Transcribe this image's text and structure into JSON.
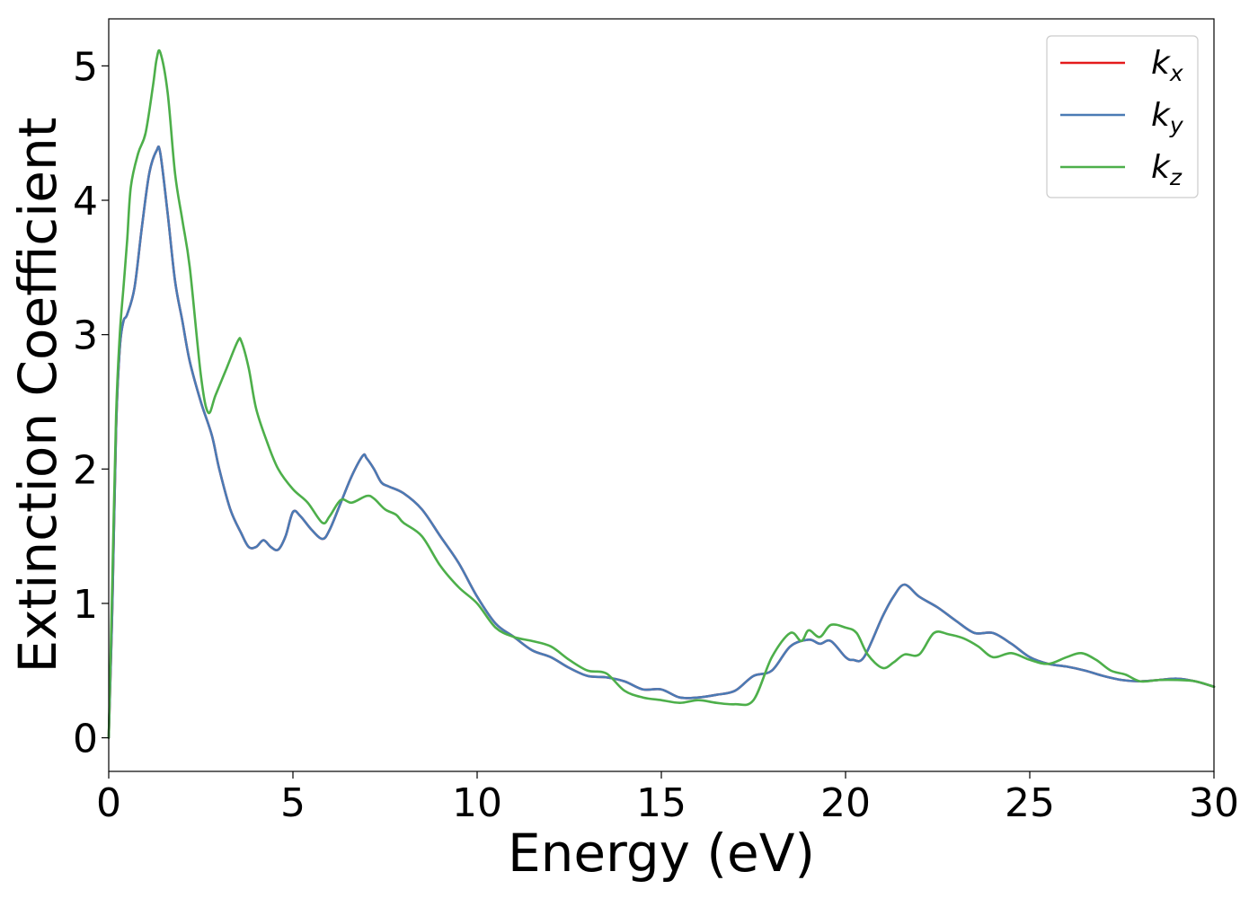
{
  "chart_data": {
    "type": "line",
    "xlabel": "Energy (eV)",
    "ylabel": "Extinction Coefficient",
    "xlim": [
      0,
      30
    ],
    "ylim": [
      -0.25,
      5.35
    ],
    "xticks": [
      0,
      5,
      10,
      15,
      20,
      25,
      30
    ],
    "yticks": [
      0,
      1,
      2,
      3,
      4,
      5
    ],
    "grid": false,
    "legend_position": "top-right",
    "series": [
      {
        "name": "k_x",
        "legend_base": "k",
        "legend_sub": "x",
        "color": "#e41a1c",
        "x": [
          0,
          0.1,
          0.2,
          0.3,
          0.4,
          0.5,
          0.7,
          0.9,
          1.1,
          1.3,
          1.4,
          1.6,
          1.8,
          2.0,
          2.2,
          2.5,
          2.8,
          3.0,
          3.3,
          3.6,
          3.8,
          4.0,
          4.2,
          4.4,
          4.6,
          4.8,
          5.0,
          5.2,
          5.5,
          5.8,
          6.0,
          6.3,
          6.6,
          6.9,
          7.0,
          7.2,
          7.4,
          7.6,
          8.0,
          8.5,
          9.0,
          9.5,
          10.0,
          10.5,
          11.0,
          11.5,
          12.0,
          12.5,
          13.0,
          13.5,
          14.0,
          14.5,
          15.0,
          15.5,
          16.0,
          16.5,
          17.0,
          17.5,
          18.0,
          18.5,
          19.0,
          19.3,
          19.6,
          20.0,
          20.2,
          20.5,
          21.0,
          21.3,
          21.6,
          22.0,
          22.5,
          23.0,
          23.5,
          24.0,
          24.5,
          25.0,
          25.5,
          26.0,
          26.5,
          27.0,
          27.5,
          28.0,
          28.5,
          29.0,
          29.5,
          30.0
        ],
        "values": [
          0,
          1.0,
          2.3,
          2.9,
          3.1,
          3.15,
          3.35,
          3.8,
          4.2,
          4.37,
          4.35,
          3.9,
          3.4,
          3.1,
          2.8,
          2.5,
          2.25,
          2.0,
          1.7,
          1.52,
          1.42,
          1.42,
          1.47,
          1.42,
          1.4,
          1.5,
          1.68,
          1.65,
          1.55,
          1.48,
          1.55,
          1.75,
          1.95,
          2.1,
          2.08,
          2.0,
          1.9,
          1.87,
          1.82,
          1.7,
          1.5,
          1.3,
          1.05,
          0.85,
          0.75,
          0.65,
          0.6,
          0.52,
          0.46,
          0.45,
          0.42,
          0.36,
          0.36,
          0.3,
          0.3,
          0.32,
          0.35,
          0.46,
          0.5,
          0.68,
          0.73,
          0.7,
          0.72,
          0.6,
          0.58,
          0.6,
          0.9,
          1.05,
          1.14,
          1.05,
          0.97,
          0.87,
          0.78,
          0.78,
          0.7,
          0.6,
          0.55,
          0.53,
          0.5,
          0.46,
          0.43,
          0.42,
          0.43,
          0.44,
          0.42,
          0.38
        ]
      },
      {
        "name": "k_y",
        "legend_base": "k",
        "legend_sub": "y",
        "color": "#4a7bb5",
        "x": [
          0,
          0.1,
          0.2,
          0.3,
          0.4,
          0.5,
          0.7,
          0.9,
          1.1,
          1.3,
          1.4,
          1.6,
          1.8,
          2.0,
          2.2,
          2.5,
          2.8,
          3.0,
          3.3,
          3.6,
          3.8,
          4.0,
          4.2,
          4.4,
          4.6,
          4.8,
          5.0,
          5.2,
          5.5,
          5.8,
          6.0,
          6.3,
          6.6,
          6.9,
          7.0,
          7.2,
          7.4,
          7.6,
          8.0,
          8.5,
          9.0,
          9.5,
          10.0,
          10.5,
          11.0,
          11.5,
          12.0,
          12.5,
          13.0,
          13.5,
          14.0,
          14.5,
          15.0,
          15.5,
          16.0,
          16.5,
          17.0,
          17.5,
          18.0,
          18.5,
          19.0,
          19.3,
          19.6,
          20.0,
          20.2,
          20.5,
          21.0,
          21.3,
          21.6,
          22.0,
          22.5,
          23.0,
          23.5,
          24.0,
          24.5,
          25.0,
          25.5,
          26.0,
          26.5,
          27.0,
          27.5,
          28.0,
          28.5,
          29.0,
          29.5,
          30.0
        ],
        "values": [
          0,
          1.0,
          2.3,
          2.9,
          3.1,
          3.15,
          3.35,
          3.8,
          4.2,
          4.37,
          4.35,
          3.9,
          3.4,
          3.1,
          2.8,
          2.5,
          2.25,
          2.0,
          1.7,
          1.52,
          1.42,
          1.42,
          1.47,
          1.42,
          1.4,
          1.5,
          1.68,
          1.65,
          1.55,
          1.48,
          1.55,
          1.75,
          1.95,
          2.1,
          2.08,
          2.0,
          1.9,
          1.87,
          1.82,
          1.7,
          1.5,
          1.3,
          1.05,
          0.85,
          0.75,
          0.65,
          0.6,
          0.52,
          0.46,
          0.45,
          0.42,
          0.36,
          0.36,
          0.3,
          0.3,
          0.32,
          0.35,
          0.46,
          0.5,
          0.68,
          0.73,
          0.7,
          0.72,
          0.6,
          0.58,
          0.6,
          0.9,
          1.05,
          1.14,
          1.05,
          0.97,
          0.87,
          0.78,
          0.78,
          0.7,
          0.6,
          0.55,
          0.53,
          0.5,
          0.46,
          0.43,
          0.42,
          0.43,
          0.44,
          0.42,
          0.38
        ]
      },
      {
        "name": "k_z",
        "legend_base": "k",
        "legend_sub": "z",
        "color": "#4daf4a",
        "x": [
          0,
          0.1,
          0.2,
          0.3,
          0.4,
          0.5,
          0.6,
          0.8,
          1.0,
          1.2,
          1.3,
          1.4,
          1.6,
          1.8,
          2.0,
          2.2,
          2.5,
          2.7,
          2.9,
          3.2,
          3.5,
          3.6,
          3.8,
          4.0,
          4.3,
          4.6,
          5.0,
          5.4,
          5.8,
          6.0,
          6.3,
          6.6,
          7.0,
          7.2,
          7.5,
          7.8,
          8.0,
          8.5,
          9.0,
          9.5,
          10.0,
          10.5,
          11.0,
          11.5,
          12.0,
          12.5,
          13.0,
          13.5,
          14.0,
          14.5,
          15.0,
          15.5,
          16.0,
          16.5,
          17.0,
          17.5,
          18.0,
          18.5,
          18.8,
          19.0,
          19.3,
          19.6,
          20.0,
          20.3,
          20.6,
          21.0,
          21.3,
          21.6,
          22.0,
          22.4,
          22.8,
          23.2,
          23.6,
          24.0,
          24.5,
          25.0,
          25.5,
          26.0,
          26.4,
          26.8,
          27.2,
          27.6,
          28.0,
          28.5,
          29.0,
          29.5,
          30.0
        ],
        "values": [
          0,
          1.2,
          2.4,
          3.0,
          3.35,
          3.7,
          4.1,
          4.35,
          4.5,
          4.85,
          5.05,
          5.1,
          4.8,
          4.2,
          3.85,
          3.5,
          2.7,
          2.42,
          2.55,
          2.75,
          2.95,
          2.95,
          2.75,
          2.45,
          2.2,
          2.0,
          1.85,
          1.75,
          1.6,
          1.65,
          1.77,
          1.75,
          1.8,
          1.78,
          1.7,
          1.66,
          1.6,
          1.5,
          1.28,
          1.12,
          1.0,
          0.82,
          0.75,
          0.72,
          0.68,
          0.58,
          0.5,
          0.48,
          0.35,
          0.3,
          0.28,
          0.26,
          0.28,
          0.26,
          0.25,
          0.28,
          0.6,
          0.78,
          0.72,
          0.8,
          0.75,
          0.84,
          0.82,
          0.78,
          0.62,
          0.52,
          0.56,
          0.62,
          0.62,
          0.78,
          0.77,
          0.74,
          0.68,
          0.6,
          0.63,
          0.58,
          0.55,
          0.6,
          0.63,
          0.58,
          0.5,
          0.47,
          0.42,
          0.43,
          0.43,
          0.42,
          0.38
        ]
      }
    ]
  }
}
